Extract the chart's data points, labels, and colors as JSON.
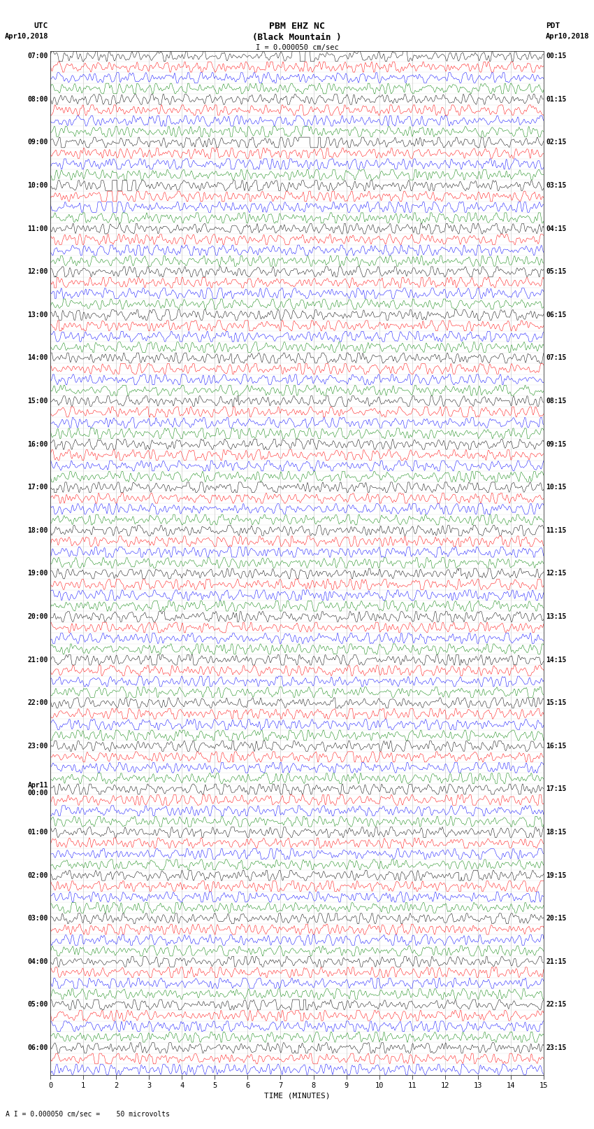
{
  "title_line1": "PBM EHZ NC",
  "title_line2": "(Black Mountain )",
  "scale_text": "I = 0.000050 cm/sec",
  "xlabel": "TIME (MINUTES)",
  "footer": "A I = 0.000050 cm/sec =    50 microvolts",
  "utc_times": [
    "07:00",
    "",
    "",
    "",
    "08:00",
    "",
    "",
    "",
    "09:00",
    "",
    "",
    "",
    "10:00",
    "",
    "",
    "",
    "11:00",
    "",
    "",
    "",
    "12:00",
    "",
    "",
    "",
    "13:00",
    "",
    "",
    "",
    "14:00",
    "",
    "",
    "",
    "15:00",
    "",
    "",
    "",
    "16:00",
    "",
    "",
    "",
    "17:00",
    "",
    "",
    "",
    "18:00",
    "",
    "",
    "",
    "19:00",
    "",
    "",
    "",
    "20:00",
    "",
    "",
    "",
    "21:00",
    "",
    "",
    "",
    "22:00",
    "",
    "",
    "",
    "23:00",
    "",
    "",
    "",
    "Apr11\n00:00",
    "",
    "",
    "",
    "01:00",
    "",
    "",
    "",
    "02:00",
    "",
    "",
    "",
    "03:00",
    "",
    "",
    "",
    "04:00",
    "",
    "",
    "",
    "05:00",
    "",
    "",
    "",
    "06:00",
    "",
    ""
  ],
  "pdt_times": [
    "00:15",
    "",
    "",
    "",
    "01:15",
    "",
    "",
    "",
    "02:15",
    "",
    "",
    "",
    "03:15",
    "",
    "",
    "",
    "04:15",
    "",
    "",
    "",
    "05:15",
    "",
    "",
    "",
    "06:15",
    "",
    "",
    "",
    "07:15",
    "",
    "",
    "",
    "08:15",
    "",
    "",
    "",
    "09:15",
    "",
    "",
    "",
    "10:15",
    "",
    "",
    "",
    "11:15",
    "",
    "",
    "",
    "12:15",
    "",
    "",
    "",
    "13:15",
    "",
    "",
    "",
    "14:15",
    "",
    "",
    "",
    "15:15",
    "",
    "",
    "",
    "16:15",
    "",
    "",
    "",
    "17:15",
    "",
    "",
    "",
    "18:15",
    "",
    "",
    "",
    "19:15",
    "",
    "",
    "",
    "20:15",
    "",
    "",
    "",
    "21:15",
    "",
    "",
    "",
    "22:15",
    "",
    "",
    "",
    "23:15",
    "",
    ""
  ],
  "n_rows": 95,
  "n_cols": 1800,
  "colors": [
    "black",
    "red",
    "blue",
    "green"
  ],
  "bg_color": "#ffffff",
  "noise_amplitude": 0.12,
  "noise_seed": 12345
}
